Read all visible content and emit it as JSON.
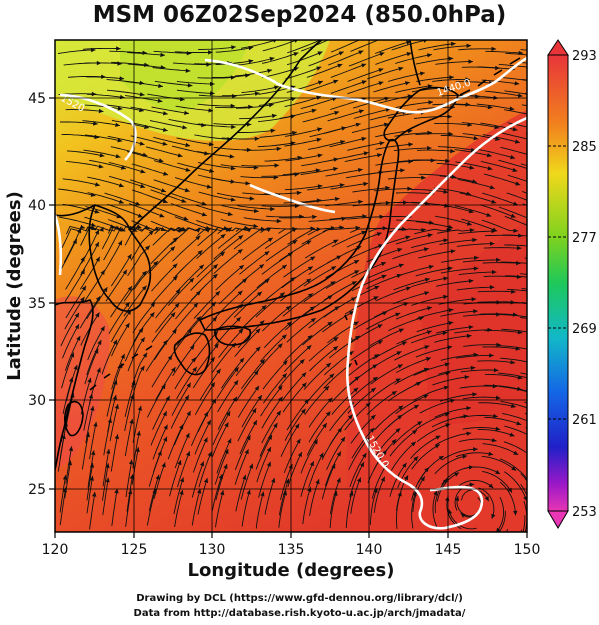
{
  "title": "MSM 06Z02Sep2024 (850.0hPa)",
  "xlabel": "Longitude (degrees)",
  "ylabel": "Latitude  (degrees)",
  "x_ticks": [
    "120",
    "125",
    "130",
    "135",
    "140",
    "145",
    "150"
  ],
  "y_ticks": [
    "25",
    "30",
    "35",
    "40",
    "45"
  ],
  "colorbar_ticks": [
    "293",
    "285",
    "277",
    "269",
    "261",
    "253"
  ],
  "contour_labels": [
    "1440.0",
    "1520.0",
    "1520"
  ],
  "credits": {
    "line1": "Drawing by DCL (https://www.gfd-dennou.org/library/dcl/)",
    "line2": "Data from http://database.rish.kyoto-u.ac.jp/arch/jmadata/"
  },
  "colors": {
    "warm": "#e23a2a",
    "mid": "#f08a1c",
    "cool": "#c8e020",
    "contour": "#ffffff",
    "coast": "#000000"
  },
  "chart_data": {
    "type": "heatmap",
    "title": "MSM 06Z02Sep2024 (850.0hPa)",
    "xlabel": "Longitude (degrees)",
    "ylabel": "Latitude  (degrees)",
    "xlim": [
      120,
      150
    ],
    "ylim": [
      22.4,
      47.6
    ],
    "colorbar_range": [
      253,
      293
    ],
    "colorbar_ticks": [
      293,
      285,
      277,
      269,
      261,
      253
    ],
    "contours": [
      1440,
      1520
    ]
  }
}
